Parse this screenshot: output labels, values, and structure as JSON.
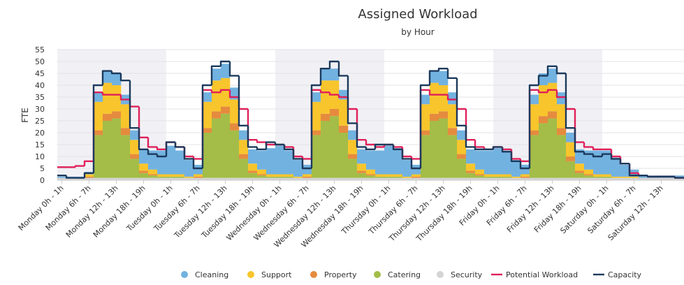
{
  "chart_data": {
    "type": "stacked-step-area",
    "title": "Assigned Workload",
    "subtitle": "by Hour",
    "y_label": "FTE",
    "ylim": [
      0,
      55
    ],
    "yticks": [
      0,
      5,
      10,
      15,
      20,
      25,
      30,
      35,
      40,
      45,
      50,
      55
    ],
    "grid": true,
    "legend": "bottom",
    "categories": [
      "Monday 0h - 1h",
      null,
      null,
      "Monday 6h - 7h",
      null,
      null,
      "Monday 12h - 13h",
      null,
      null,
      "Monday 18h - 19h",
      null,
      null,
      "Tuesday 0h - 1h",
      null,
      null,
      "Tuesday 6h - 7h",
      null,
      null,
      "Tuesday 12h - 13h",
      null,
      null,
      "Tuesday 18h - 19h",
      null,
      null,
      "Wednesday 0h - 1h",
      null,
      null,
      "Wednesday 6h - 7h",
      null,
      null,
      "Wednesday 12h - 13h",
      null,
      null,
      "Wednesday 18h - 19h",
      null,
      null,
      "Thursday 0h - 1h",
      null,
      null,
      "Thursday 6h - 7h",
      null,
      null,
      "Thursday 12h - 13h",
      null,
      null,
      "Thursday 18h - 19h",
      null,
      null,
      "Friday 0h - 1h",
      null,
      null,
      "Friday 6h - 7h",
      null,
      null,
      "Friday 12h - 13h",
      null,
      null,
      "Friday 18h - 19h",
      null,
      null,
      "Saturday 0h - 1h",
      null,
      null,
      "Saturday 6h - 7h",
      null,
      null,
      "Saturday 12h - 13h",
      null,
      null
    ],
    "series": [
      {
        "name": "Cleaning",
        "color": "#72b2e0",
        "kind": "area",
        "values": [
          0.5,
          0.5,
          0.5,
          1,
          4,
          5,
          5,
          4,
          4,
          6,
          8,
          10,
          12,
          10,
          7,
          4,
          4,
          5,
          6,
          5,
          4,
          6,
          8,
          11,
          12,
          10,
          7,
          4,
          4,
          5,
          5,
          4,
          4,
          6,
          8,
          10,
          12,
          11,
          7,
          4,
          4,
          5,
          6,
          5,
          4,
          6,
          8,
          10,
          11,
          10,
          7,
          4,
          4,
          5,
          6,
          5,
          4,
          6,
          8,
          10,
          10,
          8,
          5,
          3,
          1,
          1,
          1,
          1,
          1
        ]
      },
      {
        "name": "Support",
        "color": "#f8c52c",
        "kind": "area",
        "values": [
          0,
          0,
          0,
          1,
          12,
          13,
          11,
          10,
          6,
          3,
          2,
          1,
          1,
          1,
          0.5,
          1,
          11,
          13,
          12,
          10,
          6,
          3,
          2,
          1,
          1,
          1,
          0.5,
          1,
          12,
          14,
          12,
          11,
          6,
          3,
          2,
          1,
          1,
          1,
          0.5,
          1,
          11,
          13,
          11,
          10,
          6,
          3,
          2,
          1,
          1,
          1,
          0.5,
          1,
          11,
          13,
          12,
          10,
          6,
          3,
          2,
          1,
          1,
          0.5,
          0.5,
          0.5,
          0,
          0,
          0,
          0,
          0
        ]
      },
      {
        "name": "Property",
        "color": "#e58b3e",
        "kind": "area",
        "values": [
          0,
          0,
          0,
          0.5,
          2,
          3,
          3,
          3,
          2,
          1,
          0.5,
          0,
          0,
          0,
          0,
          0.5,
          2,
          3,
          3,
          3,
          2,
          1,
          0.5,
          0,
          0,
          0,
          0,
          0.5,
          2,
          3,
          3,
          3,
          2,
          1,
          0.5,
          0,
          0,
          0,
          0,
          0.5,
          2,
          3,
          3,
          3,
          2,
          1,
          0.5,
          0,
          0,
          0,
          0,
          0.5,
          2,
          3,
          3,
          3,
          2,
          1,
          0.5,
          0,
          0,
          0,
          0,
          0,
          0,
          0,
          0,
          0,
          0
        ]
      },
      {
        "name": "Catering",
        "color": "#a3bd48",
        "kind": "area",
        "values": [
          0,
          0,
          0,
          0,
          18,
          24,
          25,
          18,
          8,
          2,
          1,
          0.5,
          0.5,
          0.5,
          0,
          0,
          19,
          25,
          27,
          20,
          8,
          2,
          1,
          0.5,
          0.5,
          0.5,
          0,
          0,
          18,
          24,
          26,
          19,
          8,
          2,
          1,
          0.5,
          0.5,
          0.5,
          0,
          0,
          18,
          24,
          25,
          18,
          8,
          2,
          1,
          0.5,
          0.5,
          0.5,
          0,
          0,
          18,
          23,
          25,
          18,
          7,
          2,
          1,
          0.5,
          0.5,
          0,
          0,
          0,
          0,
          0,
          0,
          0,
          0
        ]
      },
      {
        "name": "Security",
        "color": "#d4d4d4",
        "kind": "area",
        "values": [
          1,
          1,
          1,
          1,
          1,
          1,
          1,
          1,
          1,
          1,
          1,
          1,
          1,
          1,
          1,
          1,
          1,
          1,
          1,
          1,
          1,
          1,
          1,
          1,
          1,
          1,
          1,
          1,
          1,
          1,
          1,
          1,
          1,
          1,
          1,
          1,
          1,
          1,
          1,
          1,
          1,
          1,
          1,
          1,
          1,
          1,
          1,
          1,
          1,
          1,
          1,
          1,
          1,
          1,
          1,
          1,
          1,
          1,
          1,
          1,
          1,
          1,
          1,
          1,
          1,
          1,
          1,
          1,
          1
        ]
      },
      {
        "name": "Potential Workload",
        "color": "#e0205a",
        "kind": "line",
        "values": [
          5.5,
          5.5,
          6,
          8,
          37,
          36,
          36,
          34,
          31,
          18,
          14,
          13,
          16,
          14,
          10,
          9,
          38,
          37,
          38,
          35,
          30,
          17,
          16,
          15,
          15,
          14,
          10,
          9,
          38,
          37,
          36,
          35,
          30,
          17,
          15,
          14,
          15,
          14,
          10,
          9,
          38,
          36,
          36,
          34,
          30,
          17,
          14,
          13,
          14,
          13,
          9,
          8,
          38,
          37,
          38,
          35,
          30,
          16,
          14,
          13,
          13,
          10,
          7,
          3,
          2,
          1.5,
          1.5,
          1.5,
          1
        ]
      },
      {
        "name": "Capacity",
        "color": "#1c3a5c",
        "kind": "line",
        "values": [
          2,
          1,
          1,
          3,
          40,
          46,
          45,
          42,
          22,
          13,
          11,
          10,
          16,
          14,
          9,
          5,
          40,
          48,
          50,
          44,
          23,
          14,
          13,
          16,
          15,
          13,
          9,
          5,
          40,
          47,
          50,
          44,
          24,
          14,
          13,
          15,
          15,
          13,
          9,
          5,
          40,
          46,
          47,
          43,
          23,
          14,
          13,
          13,
          14,
          12,
          8,
          5,
          40,
          44,
          48,
          45,
          22,
          12,
          11,
          10,
          11,
          9,
          7,
          2,
          2,
          1.5,
          1.5,
          1.5,
          1
        ]
      }
    ]
  }
}
